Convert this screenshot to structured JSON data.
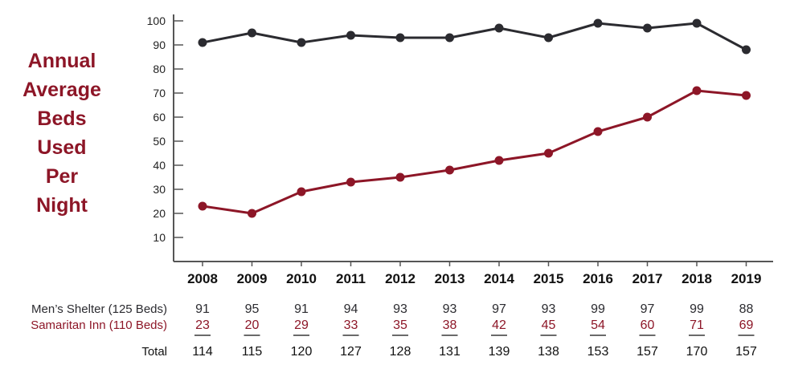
{
  "title_lines": [
    "Annual",
    "Average",
    "Beds",
    "Used",
    "Per",
    "Night"
  ],
  "colors": {
    "mens": "#2b2b30",
    "samaritan": "#8d1627",
    "axis": "#555555",
    "title": "#8d1627"
  },
  "chart_data": {
    "type": "line",
    "x": [
      "2008",
      "2009",
      "2010",
      "2011",
      "2012",
      "2013",
      "2014",
      "2015",
      "2016",
      "2017",
      "2018",
      "2019"
    ],
    "ylim": [
      0,
      100
    ],
    "yticks": [
      "10",
      "20",
      "30",
      "40",
      "50",
      "60",
      "70",
      "80",
      "90",
      "100"
    ],
    "grid": false,
    "series": [
      {
        "name": "Men’s Shelter (125 Beds)",
        "values": [
          91,
          95,
          91,
          94,
          93,
          93,
          97,
          93,
          99,
          97,
          99,
          88
        ],
        "color": "#2b2b30"
      },
      {
        "name": "Samaritan Inn (110 Beds)",
        "values": [
          23,
          20,
          29,
          33,
          35,
          38,
          42,
          45,
          54,
          60,
          71,
          69
        ],
        "color": "#8d1627"
      }
    ]
  },
  "table": {
    "rows": [
      {
        "label": "Men’s Shelter (125 Beds)",
        "values": [
          "91",
          "95",
          "91",
          "94",
          "93",
          "93",
          "97",
          "93",
          "99",
          "97",
          "99",
          "88"
        ],
        "color": "#2b2b30"
      },
      {
        "label": "Samaritan Inn (110 Beds)",
        "values": [
          "23",
          "20",
          "29",
          "33",
          "35",
          "38",
          "42",
          "45",
          "54",
          "60",
          "71",
          "69"
        ],
        "color": "#8d1627"
      }
    ],
    "total_label": "Total",
    "totals": [
      "114",
      "115",
      "120",
      "127",
      "128",
      "131",
      "139",
      "138",
      "153",
      "157",
      "170",
      "157"
    ]
  }
}
